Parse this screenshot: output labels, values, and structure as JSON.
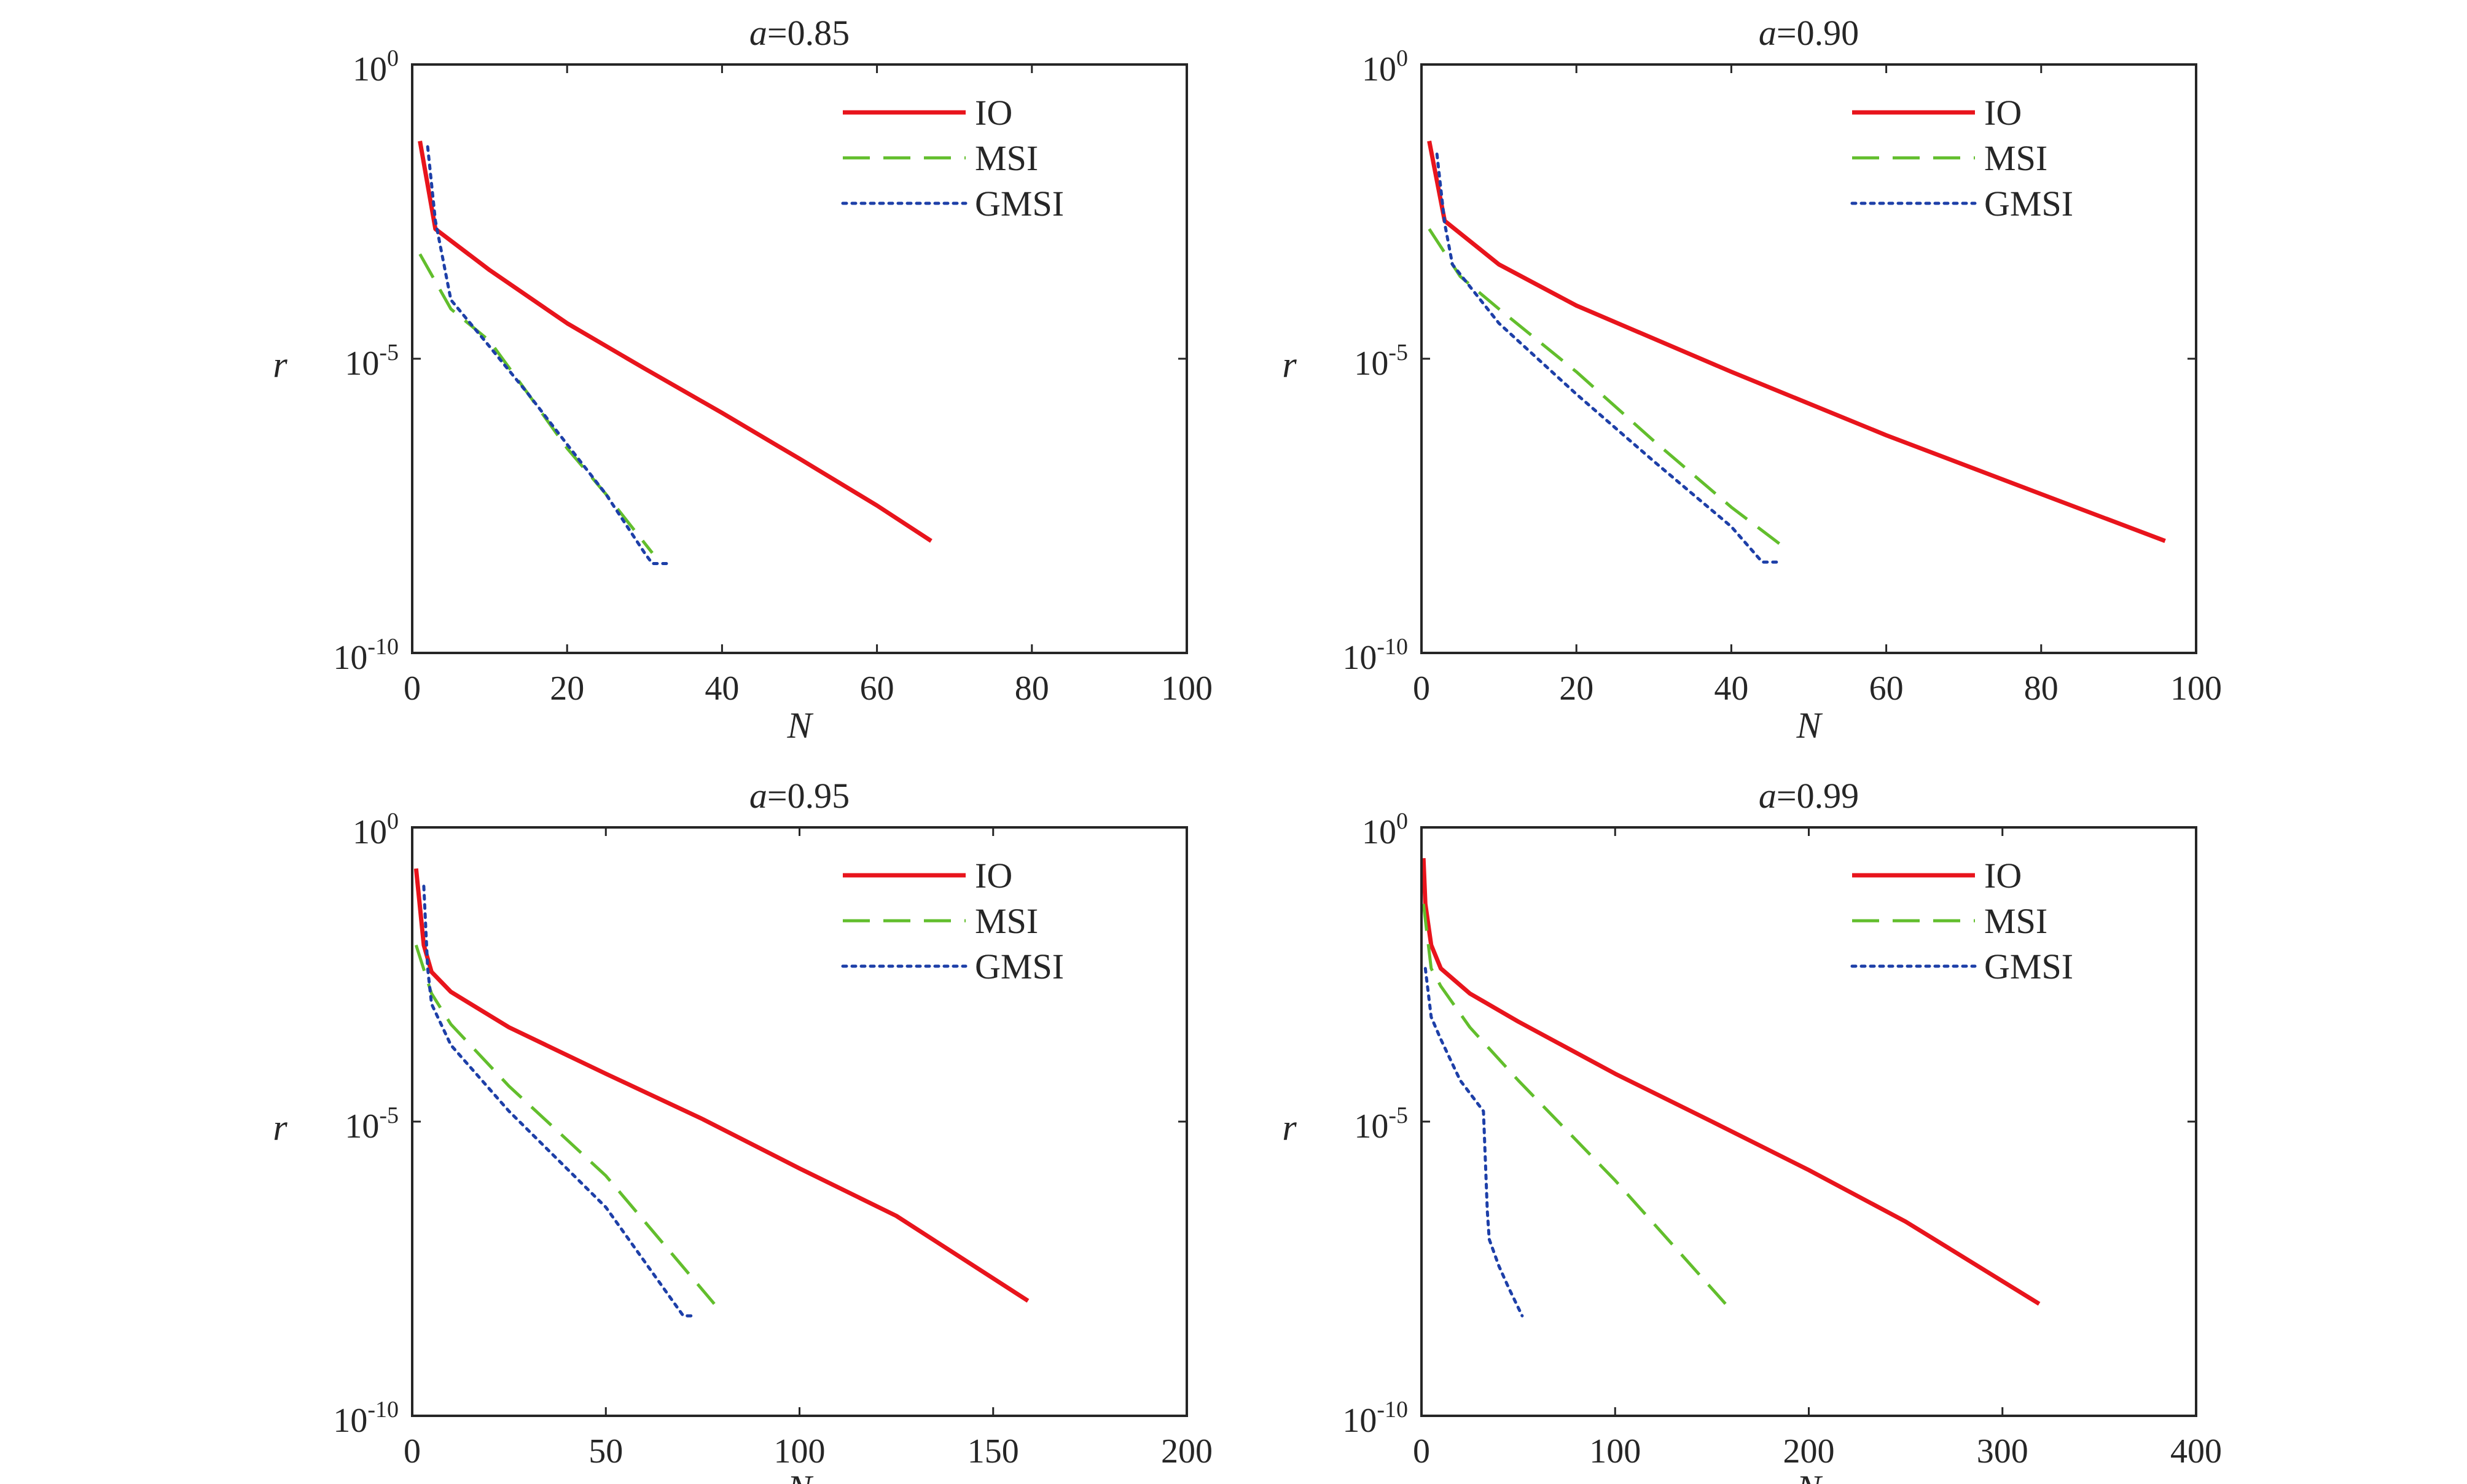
{
  "chart_data": [
    {
      "type": "line",
      "title_prefix": "a",
      "title_value": "=0.85",
      "xlabel": "N",
      "ylabel": "r",
      "xlim": [
        0,
        100
      ],
      "xticks": [
        0,
        20,
        40,
        60,
        80,
        100
      ],
      "xtick_labels": [
        "0",
        "20",
        "40",
        "60",
        "80",
        "100"
      ],
      "ylim": [
        1e-10,
        1
      ],
      "yscale": "log",
      "yticks": [
        {
          "base": "10",
          "exp": "0",
          "value": 1
        },
        {
          "base": "10",
          "exp": "-5",
          "value": 1e-05
        },
        {
          "base": "10",
          "exp": "-10",
          "value": 1e-10
        }
      ],
      "grid": false,
      "legend": "top-right",
      "series": [
        {
          "name": "IO",
          "color": "#e8141c",
          "style": "solid",
          "x": [
            1,
            3,
            10,
            20,
            30,
            40,
            50,
            60,
            67
          ],
          "y": [
            0.05,
            0.0016,
            0.00032,
            4e-05,
            6.8e-06,
            1.2e-06,
            2e-07,
            3.2e-08,
            8e-09
          ]
        },
        {
          "name": "MSI",
          "color": "#62be2c",
          "style": "dashed",
          "x": [
            1,
            5,
            10,
            15,
            20,
            25,
            31
          ],
          "y": [
            0.0006,
            7e-05,
            2e-05,
            2.5e-06,
            3e-07,
            5e-08,
            5e-09
          ]
        },
        {
          "name": "GMSI",
          "color": "#1d3fa8",
          "style": "dotted",
          "x": [
            2,
            3,
            5,
            10,
            15,
            20,
            25,
            30,
            31,
            33
          ],
          "y": [
            0.04,
            0.0022,
            0.0001,
            1.6e-05,
            2.5e-06,
            3.5e-07,
            5e-08,
            5e-09,
            3.3e-09,
            3.3e-09
          ]
        }
      ]
    },
    {
      "type": "line",
      "title_prefix": "a",
      "title_value": "=0.90",
      "xlabel": "N",
      "ylabel": "r",
      "xlim": [
        0,
        100
      ],
      "xticks": [
        0,
        20,
        40,
        60,
        80,
        100
      ],
      "xtick_labels": [
        "0",
        "20",
        "40",
        "60",
        "80",
        "100"
      ],
      "ylim": [
        1e-10,
        1
      ],
      "yscale": "log",
      "yticks": [
        {
          "base": "10",
          "exp": "0",
          "value": 1
        },
        {
          "base": "10",
          "exp": "-5",
          "value": 1e-05
        },
        {
          "base": "10",
          "exp": "-10",
          "value": 1e-10
        }
      ],
      "grid": false,
      "legend": "top-right",
      "series": [
        {
          "name": "IO",
          "color": "#e8141c",
          "style": "solid",
          "x": [
            1,
            3,
            10,
            20,
            40,
            60,
            80,
            96
          ],
          "y": [
            0.05,
            0.0022,
            0.0004,
            8e-05,
            6e-06,
            5e-07,
            5e-08,
            8e-09
          ]
        },
        {
          "name": "MSI",
          "color": "#62be2c",
          "style": "dashed",
          "x": [
            1,
            5,
            10,
            20,
            30,
            40,
            47
          ],
          "y": [
            0.0016,
            0.00025,
            7e-05,
            6e-06,
            4e-07,
            3e-08,
            6e-09
          ]
        },
        {
          "name": "GMSI",
          "color": "#1d3fa8",
          "style": "dotted",
          "x": [
            2,
            3,
            4,
            10,
            20,
            30,
            40,
            44,
            46
          ],
          "y": [
            0.03,
            0.002,
            0.0004,
            4e-05,
            2.5e-06,
            1.8e-07,
            1.4e-08,
            3.5e-09,
            3.5e-09
          ]
        }
      ]
    },
    {
      "type": "line",
      "title_prefix": "a",
      "title_value": "=0.95",
      "xlabel": "N",
      "ylabel": "r",
      "xlim": [
        0,
        200
      ],
      "xticks": [
        0,
        50,
        100,
        150,
        200
      ],
      "xtick_labels": [
        "0",
        "50",
        "100",
        "150",
        "200"
      ],
      "ylim": [
        1e-10,
        1
      ],
      "yscale": "log",
      "yticks": [
        {
          "base": "10",
          "exp": "0",
          "value": 1
        },
        {
          "base": "10",
          "exp": "-5",
          "value": 1e-05
        },
        {
          "base": "10",
          "exp": "-10",
          "value": 1e-10
        }
      ],
      "grid": false,
      "legend": "top-right",
      "series": [
        {
          "name": "IO",
          "color": "#e8141c",
          "style": "solid",
          "x": [
            1,
            3,
            5,
            10,
            25,
            50,
            75,
            100,
            125,
            159
          ],
          "y": [
            0.2,
            0.01,
            0.0035,
            0.0016,
            0.0004,
            6.5e-05,
            1.1e-05,
            1.6e-06,
            2.5e-07,
            9e-09
          ]
        },
        {
          "name": "MSI",
          "color": "#62be2c",
          "style": "dashed",
          "x": [
            1,
            5,
            10,
            25,
            50,
            78
          ],
          "y": [
            0.01,
            0.0015,
            0.00045,
            4e-05,
            1.2e-06,
            8e-09
          ]
        },
        {
          "name": "GMSI",
          "color": "#1d3fa8",
          "style": "dotted",
          "x": [
            3,
            4,
            5,
            10,
            25,
            50,
            70,
            73
          ],
          "y": [
            0.1,
            0.004,
            0.001,
            0.0002,
            1.5e-05,
            3.5e-07,
            5e-09,
            5e-09
          ]
        }
      ]
    },
    {
      "type": "line",
      "title_prefix": "a",
      "title_value": "=0.99",
      "xlabel": "N",
      "ylabel": "r",
      "xlim": [
        0,
        400
      ],
      "xticks": [
        0,
        100,
        200,
        300,
        400
      ],
      "xtick_labels": [
        "0",
        "100",
        "200",
        "300",
        "400"
      ],
      "ylim": [
        1e-10,
        1
      ],
      "yscale": "log",
      "yticks": [
        {
          "base": "10",
          "exp": "0",
          "value": 1
        },
        {
          "base": "10",
          "exp": "-5",
          "value": 1e-05
        },
        {
          "base": "10",
          "exp": "-10",
          "value": 1e-10
        }
      ],
      "grid": false,
      "legend": "top-right",
      "series": [
        {
          "name": "IO",
          "color": "#e8141c",
          "style": "solid",
          "x": [
            1,
            2,
            5,
            10,
            25,
            50,
            100,
            150,
            200,
            250,
            319
          ],
          "y": [
            0.3,
            0.05,
            0.01,
            0.004,
            0.0015,
            0.0005,
            6.5e-05,
            1e-05,
            1.5e-06,
            2e-07,
            8e-09
          ]
        },
        {
          "name": "MSI",
          "color": "#62be2c",
          "style": "dashed",
          "x": [
            1,
            5,
            10,
            25,
            50,
            100,
            157
          ],
          "y": [
            0.05,
            0.004,
            0.002,
            0.0004,
            5e-05,
            1e-06,
            8e-09
          ]
        },
        {
          "name": "GMSI",
          "color": "#1d3fa8",
          "style": "dotted",
          "x": [
            2,
            5,
            10,
            20,
            32,
            34,
            35,
            40,
            45,
            52
          ],
          "y": [
            0.004,
            0.0006,
            0.00025,
            5e-05,
            1.5e-05,
            3e-07,
            1e-07,
            3.5e-08,
            1.5e-08,
            5e-09
          ]
        }
      ]
    }
  ]
}
